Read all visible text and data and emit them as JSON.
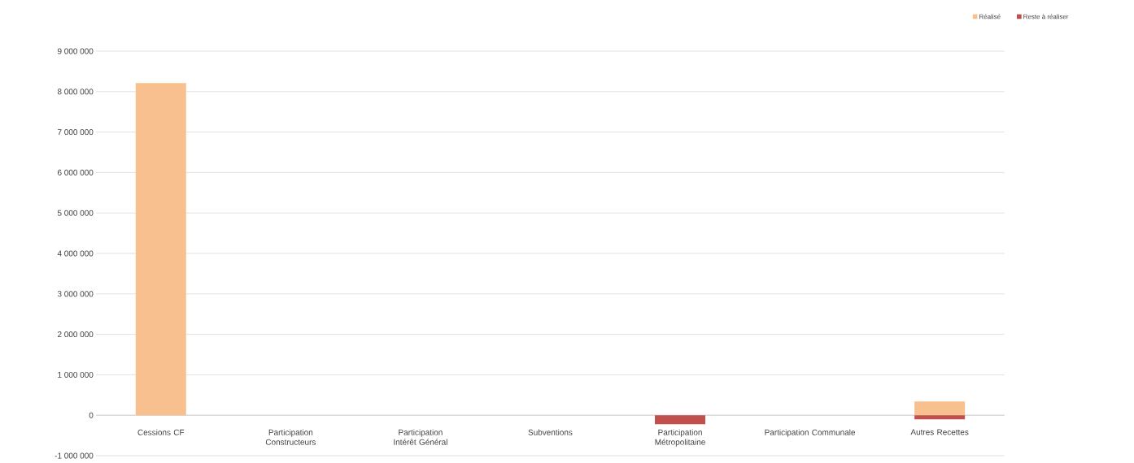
{
  "chart_data": {
    "type": "bar",
    "stacked": true,
    "categories": [
      "Cessions CF",
      "Participation Constructeurs",
      "Participation Intérêt Général",
      "Subventions",
      "Participation Métropolitaine",
      "Participation Communale",
      "Autres Recettes"
    ],
    "series": [
      {
        "name": "Réalisé",
        "color": "#f8bf8f",
        "values": [
          8210000,
          0,
          0,
          0,
          0,
          0,
          340000
        ]
      },
      {
        "name": "Reste à réaliser",
        "color": "#c0504d",
        "values": [
          0,
          0,
          0,
          0,
          -220000,
          0,
          -100000
        ]
      }
    ],
    "ylim": [
      -1000000,
      9000000
    ],
    "yticks": [
      {
        "value": -1000000,
        "label": "-1 000 000"
      },
      {
        "value": 0,
        "label": "0"
      },
      {
        "value": 1000000,
        "label": "1 000 000"
      },
      {
        "value": 2000000,
        "label": "2 000 000"
      },
      {
        "value": 3000000,
        "label": "3 000 000"
      },
      {
        "value": 4000000,
        "label": "4 000 000"
      },
      {
        "value": 5000000,
        "label": "5 000 000"
      },
      {
        "value": 6000000,
        "label": "6 000 000"
      },
      {
        "value": 7000000,
        "label": "7 000 000"
      },
      {
        "value": 8000000,
        "label": "8 000 000"
      },
      {
        "value": 9000000,
        "label": "9 000 000"
      }
    ],
    "grid": "y",
    "legend": "top right"
  }
}
